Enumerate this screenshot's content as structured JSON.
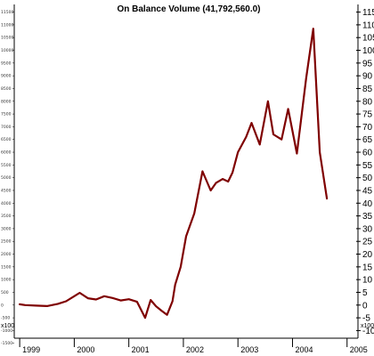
{
  "chart_data": {
    "type": "line",
    "title": "On Balance Volume (41,792,560.0)",
    "color": "#7f0000",
    "axis_multiplier_label": "x100",
    "x_ticks": [
      "1999",
      "2000",
      "2001",
      "2002",
      "2003",
      "2004",
      "2005"
    ],
    "right_ticks": [
      "115",
      "110",
      "105",
      "100",
      "95",
      "90",
      "85",
      "80",
      "75",
      "70",
      "65",
      "60",
      "55",
      "50",
      "45",
      "40",
      "35",
      "30",
      "25",
      "20",
      "15",
      "10",
      "5",
      "0",
      "-5",
      "-10"
    ],
    "left_ticks": [
      "11500",
      "11000",
      "10500",
      "10000",
      "9500",
      "9000",
      "8500",
      "8000",
      "7500",
      "7000",
      "6500",
      "6000",
      "5500",
      "5000",
      "4500",
      "4000",
      "3500",
      "3000",
      "2500",
      "2000",
      "1500",
      "1000",
      "500",
      "0",
      "-500",
      "-1000",
      "-1500"
    ],
    "ylim": [
      -13,
      118
    ],
    "xlim": [
      1998.9,
      2005.2
    ],
    "series": [
      {
        "x": [
          1999.0,
          1999.1,
          1999.3,
          1999.5,
          1999.7,
          1999.85,
          2000.0,
          2000.1,
          2000.25,
          2000.4,
          2000.55,
          2000.7,
          2000.85,
          2001.0,
          2001.15,
          2001.3,
          2001.4,
          2001.5,
          2001.6,
          2001.7,
          2001.8,
          2001.85,
          2001.95,
          2002.05,
          2002.2,
          2002.35,
          2002.5,
          2002.6,
          2002.72,
          2002.82,
          2002.9,
          2003.0,
          2003.15,
          2003.25,
          2003.4,
          2003.55,
          2003.65,
          2003.8,
          2003.92,
          2004.08,
          2004.25,
          2004.38,
          2004.5,
          2004.63
        ],
        "y": [
          0.3,
          0,
          -0.2,
          -0.4,
          0.5,
          1.5,
          3.5,
          4.8,
          2.7,
          2.2,
          3.5,
          2.8,
          1.8,
          2.3,
          1.3,
          -5.0,
          2.0,
          -0.5,
          -2.2,
          -3.8,
          1.5,
          8.0,
          15.0,
          27.0,
          36.0,
          52.5,
          45.0,
          48.0,
          49.5,
          48.5,
          52.0,
          60.0,
          66.0,
          71.5,
          63.0,
          80.0,
          67.0,
          65.0,
          77.0,
          59.5,
          89.0,
          108.5,
          60.0,
          41.8
        ]
      }
    ],
    "grid": false,
    "legend": "none"
  }
}
